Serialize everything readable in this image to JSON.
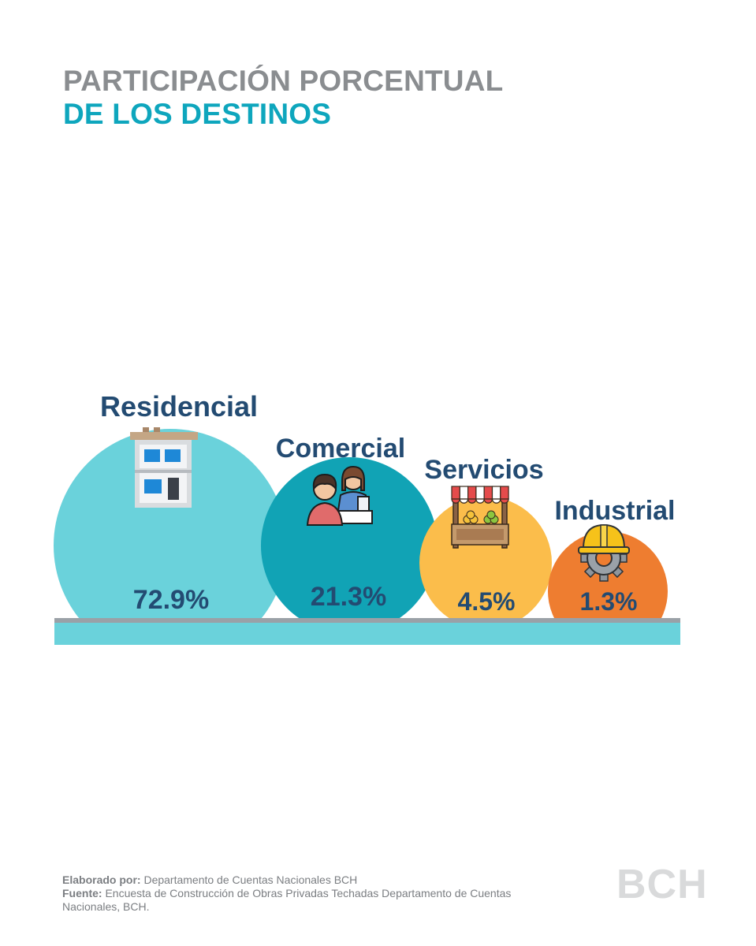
{
  "header": {
    "title_line1": "PARTICIPACIÓN PORCENTUAL",
    "title_line2": "DE LOS DESTINOS"
  },
  "chart_data": {
    "type": "bubble",
    "categories": [
      "Residencial",
      "Comercial",
      "Servicios",
      "Industrial"
    ],
    "values": [
      72.9,
      21.3,
      4.5,
      1.3
    ],
    "value_labels": [
      "72.9%",
      "21.3%",
      "4.5%",
      "1.3%"
    ],
    "colors": [
      "#6ad2db",
      "#11a3b5",
      "#fbbd4b",
      "#ee7d30"
    ],
    "icons": [
      "building-icon",
      "customer-service-icon",
      "market-stall-icon",
      "hard-hat-gear-icon"
    ],
    "label_color": "#234b72",
    "base_color": "#6ad2db"
  },
  "footer": {
    "elaborado_label": "Elaborado por:",
    "elaborado_text": "Departamento de Cuentas Nacionales BCH",
    "fuente_label": "Fuente:",
    "fuente_text": "Encuesta de Construcción de Obras Privadas Techadas Departamento de Cuentas Nacionales, BCH."
  },
  "logo": {
    "text": "BCH"
  }
}
